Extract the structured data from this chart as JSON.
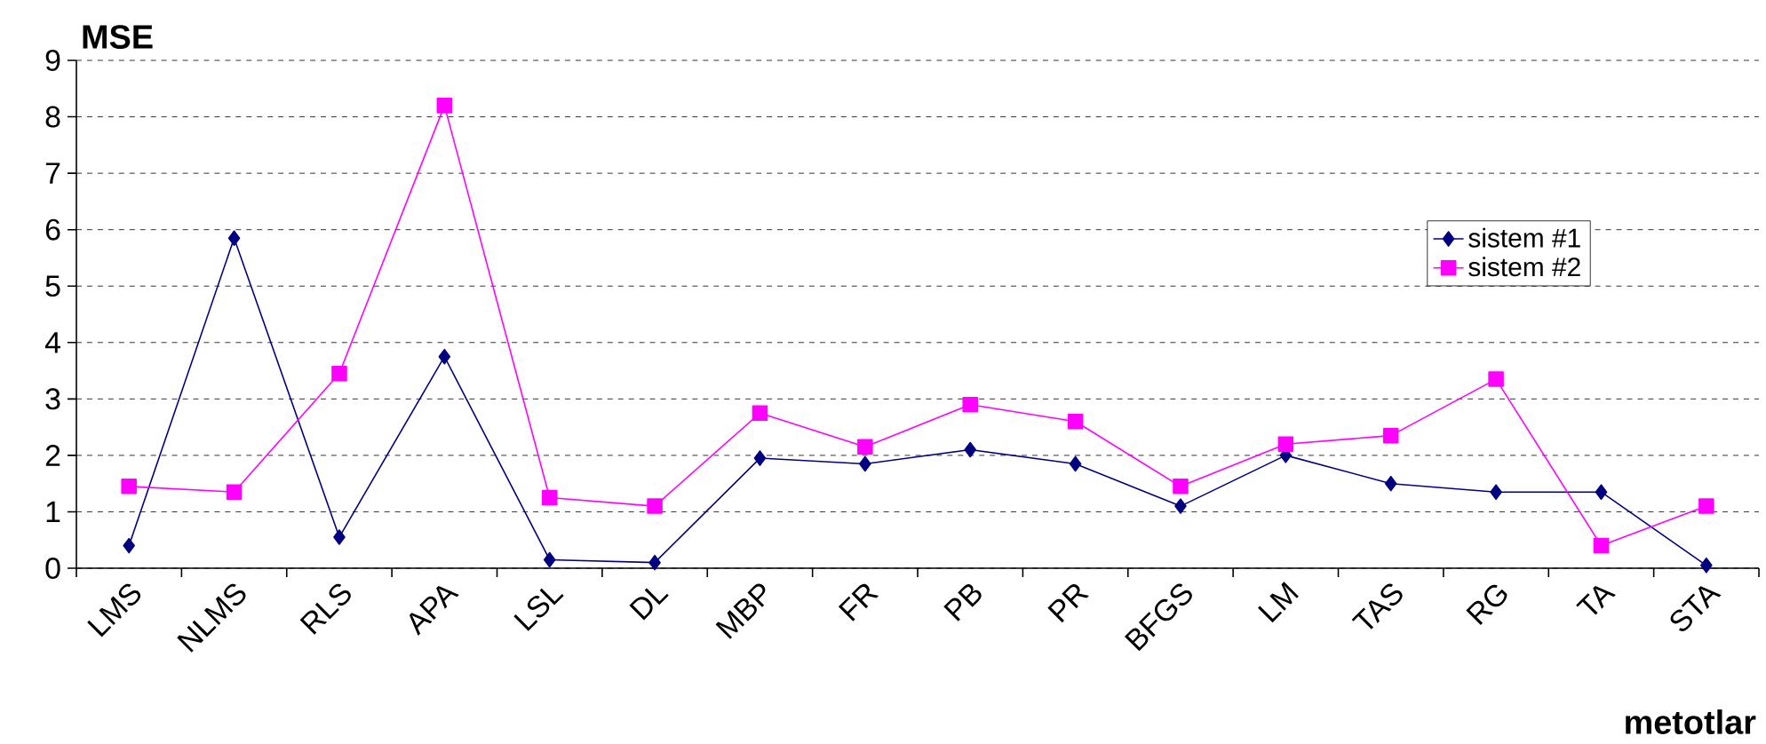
{
  "chart_data": {
    "type": "line",
    "ylabel": "MSE",
    "xlabel": "metotlar",
    "categories": [
      "LMS",
      "NLMS",
      "RLS",
      "APA",
      "LSL",
      "DL",
      "MBP",
      "FR",
      "PB",
      "PR",
      "BFGS",
      "LM",
      "TAS",
      "RG",
      "TA",
      "STA"
    ],
    "series": [
      {
        "name": "sistem #1",
        "color": "#000080",
        "marker": "diamond",
        "values": [
          0.4,
          5.85,
          0.55,
          3.75,
          0.15,
          0.1,
          1.95,
          1.85,
          2.1,
          1.85,
          1.1,
          2.0,
          1.5,
          1.35,
          1.35,
          0.05
        ]
      },
      {
        "name": "sistem #2",
        "color": "#ff00ff",
        "marker": "square",
        "values": [
          1.45,
          1.35,
          3.45,
          8.2,
          1.25,
          1.1,
          2.75,
          2.15,
          2.9,
          2.6,
          1.45,
          2.2,
          2.35,
          3.35,
          0.4,
          1.1
        ]
      }
    ],
    "ylim": [
      0,
      9
    ],
    "yticks": [
      0,
      1,
      2,
      3,
      4,
      5,
      6,
      7,
      8,
      9
    ],
    "grid": "y",
    "legend": "right",
    "line_style": "solid"
  }
}
